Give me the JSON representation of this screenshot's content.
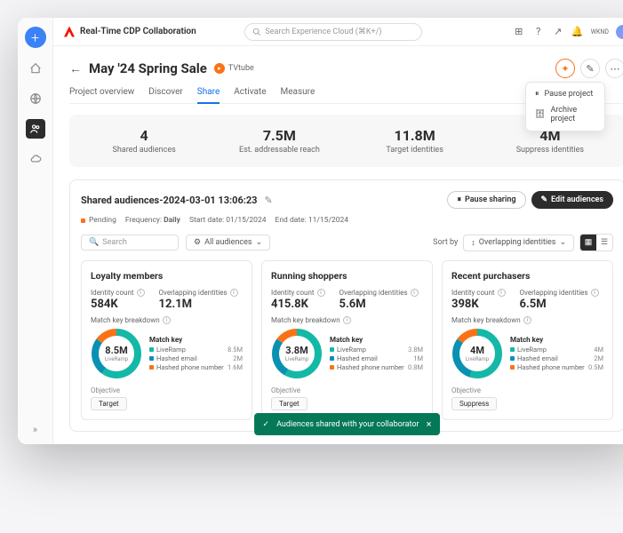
{
  "app_name": "Real-Time CDP Collaboration",
  "search_placeholder": "Search Experience Cloud (⌘K+/)",
  "partner_badge": "WKND",
  "page": {
    "title": "May '24 Spring Sale",
    "partner": "TVtube",
    "tabs": [
      "Project overview",
      "Discover",
      "Share",
      "Activate",
      "Measure"
    ],
    "active_tab": 2
  },
  "menu": {
    "pause": "Pause project",
    "archive": "Archive project"
  },
  "stats": [
    {
      "v": "4",
      "l": "Shared audiences"
    },
    {
      "v": "7.5M",
      "l": "Est. addressable reach"
    },
    {
      "v": "11.8M",
      "l": "Target identities"
    },
    {
      "v": "4M",
      "l": "Suppress identities"
    }
  ],
  "shared": {
    "title": "Shared audiences-2024-03-01 13:06:23",
    "status": "Pending",
    "freq_label": "Frequency:",
    "freq": "Daily",
    "start_label": "Start date:",
    "start": "01/15/2024",
    "end_label": "End date:",
    "end": "11/15/2024",
    "pause_btn": "Pause sharing",
    "edit_btn": "Edit audiences"
  },
  "filters": {
    "search": "Search",
    "all": "All audiences",
    "sort_label": "Sort by",
    "sort_value": "Overlapping identities"
  },
  "colors": {
    "c1": "#14b8a6",
    "c2": "#0891b2",
    "c3": "#f97316"
  },
  "cards": [
    {
      "name": "Loyalty members",
      "id_count": "584K",
      "overlap": "12.1M",
      "donut_big": "8.5M",
      "donut_sm": "LiveRamp",
      "seg": [
        60,
        25,
        15
      ],
      "keys": [
        {
          "l": "LiveRamp",
          "v": "8.5M"
        },
        {
          "l": "Hashed email",
          "v": "2M"
        },
        {
          "l": "Hashed phone number",
          "v": "1.6M"
        }
      ],
      "objective": "Target"
    },
    {
      "name": "Running shoppers",
      "id_count": "415.8K",
      "overlap": "5.6M",
      "donut_big": "3.8M",
      "donut_sm": "LiveRamp",
      "seg": [
        58,
        27,
        15
      ],
      "keys": [
        {
          "l": "LiveRamp",
          "v": "3.8M"
        },
        {
          "l": "Hashed email",
          "v": "1M"
        },
        {
          "l": "Hashed phone number",
          "v": "0.8M"
        }
      ],
      "objective": "Target"
    },
    {
      "name": "Recent purchasers",
      "id_count": "398K",
      "overlap": "6.5M",
      "donut_big": "4M",
      "donut_sm": "LiveRamp",
      "seg": [
        55,
        30,
        15
      ],
      "keys": [
        {
          "l": "LiveRamp",
          "v": "4M"
        },
        {
          "l": "Hashed email",
          "v": "2M"
        },
        {
          "l": "Hashed phone number",
          "v": "0.5M"
        }
      ],
      "objective": "Suppress"
    }
  ],
  "labels": {
    "id_count": "Identity count",
    "overlap": "Overlapping identities",
    "mkb": "Match key breakdown",
    "mk": "Match key",
    "obj": "Objective"
  },
  "toast": "Audiences shared with your collaborator"
}
